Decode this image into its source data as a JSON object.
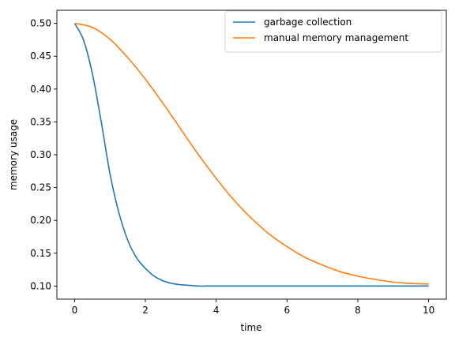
{
  "chart_data": {
    "type": "line",
    "title": "",
    "xlabel": "time",
    "ylabel": "memory usage",
    "xlim": [
      -0.5,
      10.5
    ],
    "ylim": [
      0.08,
      0.52
    ],
    "xticks": [
      0,
      2,
      4,
      6,
      8,
      10
    ],
    "xtick_labels": [
      "0",
      "2",
      "4",
      "6",
      "8",
      "10"
    ],
    "yticks": [
      0.1,
      0.15,
      0.2,
      0.25,
      0.3,
      0.35,
      0.4,
      0.45,
      0.5
    ],
    "ytick_labels": [
      "0.10",
      "0.15",
      "0.20",
      "0.25",
      "0.30",
      "0.35",
      "0.40",
      "0.45",
      "0.50"
    ],
    "grid": false,
    "legend_position": "top-right",
    "series": [
      {
        "name": "garbage collection",
        "color": "#1f77b4",
        "x": [
          0,
          0.25,
          0.5,
          0.75,
          1,
          1.25,
          1.5,
          1.75,
          2,
          2.25,
          2.5,
          2.75,
          3,
          3.25,
          3.5,
          3.75,
          4,
          4.5,
          5,
          6,
          7,
          8,
          9,
          10
        ],
        "y": [
          0.5,
          0.475,
          0.424,
          0.351,
          0.271,
          0.212,
          0.17,
          0.143,
          0.127,
          0.115,
          0.108,
          0.104,
          0.102,
          0.101,
          0.1,
          0.1,
          0.1,
          0.1,
          0.1,
          0.1,
          0.1,
          0.1,
          0.1,
          0.1
        ]
      },
      {
        "name": "manual memory management",
        "color": "#ff7f0e",
        "x": [
          0,
          0.5,
          1,
          1.5,
          2,
          2.5,
          3,
          3.5,
          4,
          4.5,
          5,
          5.5,
          6,
          6.5,
          7,
          7.5,
          8,
          8.5,
          9,
          9.5,
          10
        ],
        "y": [
          0.5,
          0.494,
          0.476,
          0.448,
          0.415,
          0.378,
          0.339,
          0.3,
          0.264,
          0.231,
          0.203,
          0.179,
          0.16,
          0.144,
          0.132,
          0.122,
          0.115,
          0.11,
          0.106,
          0.104,
          0.103
        ]
      }
    ]
  }
}
